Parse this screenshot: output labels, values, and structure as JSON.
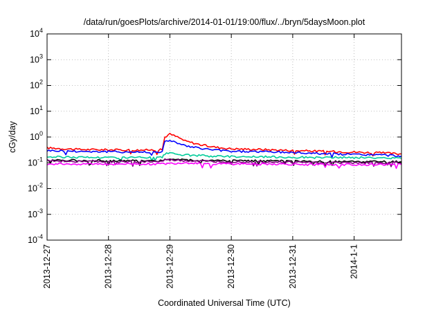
{
  "chart_data": {
    "type": "line",
    "title": "/data/run/goesPlots/archive/2014-01-01/19:00/flux/../bryn/5daysMoon.plot",
    "xlabel": "Coordinated Universal Time (UTC)",
    "ylabel": "cGy/day",
    "y_scale": "log",
    "ylim": [
      0.0001,
      10000
    ],
    "xlim": [
      "2013-12-27",
      "2014-01-01T18:30"
    ],
    "x_ticks": [
      "2013-12-27",
      "2013-12-28",
      "2013-12-29",
      "2013-12-30",
      "2013-12-31",
      "2014-1-1"
    ],
    "y_ticks": [
      {
        "base": "10",
        "exp": "-4",
        "value": 0.0001
      },
      {
        "base": "10",
        "exp": "-3",
        "value": 0.001
      },
      {
        "base": "10",
        "exp": "-2",
        "value": 0.01
      },
      {
        "base": "10",
        "exp": "-1",
        "value": 0.1
      },
      {
        "base": "10",
        "exp": "0",
        "value": 1
      },
      {
        "base": "10",
        "exp": "1",
        "value": 10
      },
      {
        "base": "10",
        "exp": "2",
        "value": 100
      },
      {
        "base": "10",
        "exp": "3",
        "value": 1000
      },
      {
        "base": "10",
        "exp": "4",
        "value": 10000
      }
    ],
    "grid": true,
    "legend": "none",
    "series": [
      {
        "color": "#ff0000",
        "x": [
          "2013-12-27T00:00",
          "2013-12-27T12:00",
          "2013-12-28T00:00",
          "2013-12-28T12:00",
          "2013-12-28T21:00",
          "2013-12-28T22:00",
          "2013-12-29T00:00",
          "2013-12-29T03:00",
          "2013-12-29T06:00",
          "2013-12-29T12:00",
          "2013-12-29T18:00",
          "2013-12-30T00:00",
          "2013-12-30T12:00",
          "2013-12-31T00:00",
          "2013-12-31T12:00",
          "2014-01-01T00:00",
          "2014-01-01T12:00",
          "2014-01-01T18:30"
        ],
        "values": [
          0.38,
          0.33,
          0.32,
          0.31,
          0.32,
          1.0,
          1.3,
          1.0,
          0.7,
          0.5,
          0.4,
          0.35,
          0.33,
          0.3,
          0.28,
          0.26,
          0.24,
          0.22
        ]
      },
      {
        "color": "#0000ff",
        "x": [
          "2013-12-27T00:00",
          "2013-12-27T12:00",
          "2013-12-28T00:00",
          "2013-12-28T12:00",
          "2013-12-28T21:00",
          "2013-12-28T22:00",
          "2013-12-29T00:00",
          "2013-12-29T03:00",
          "2013-12-29T06:00",
          "2013-12-29T12:00",
          "2013-12-29T18:00",
          "2013-12-30T00:00",
          "2013-12-30T12:00",
          "2013-12-31T00:00",
          "2013-12-31T12:00",
          "2014-01-01T00:00",
          "2014-01-01T12:00",
          "2014-01-01T18:30"
        ],
        "values": [
          0.3,
          0.28,
          0.27,
          0.26,
          0.27,
          0.65,
          0.75,
          0.6,
          0.45,
          0.36,
          0.31,
          0.28,
          0.27,
          0.25,
          0.23,
          0.21,
          0.2,
          0.18
        ]
      },
      {
        "color": "#00cc99",
        "x": [
          "2013-12-27T00:00",
          "2013-12-28T00:00",
          "2013-12-28T21:00",
          "2013-12-28T22:00",
          "2013-12-29T00:00",
          "2013-12-29T06:00",
          "2013-12-29T18:00",
          "2013-12-30T12:00",
          "2013-12-31T12:00",
          "2014-01-01T00:00",
          "2014-01-01T18:30"
        ],
        "values": [
          0.17,
          0.16,
          0.16,
          0.22,
          0.23,
          0.2,
          0.18,
          0.17,
          0.16,
          0.16,
          0.15
        ]
      },
      {
        "color": "#000000",
        "x": [
          "2013-12-27T00:00",
          "2013-12-28T00:00",
          "2013-12-28T21:00",
          "2013-12-28T22:00",
          "2013-12-29T06:00",
          "2013-12-29T18:00",
          "2013-12-30T12:00",
          "2013-12-31T12:00",
          "2014-01-01T18:30"
        ],
        "values": [
          0.13,
          0.12,
          0.12,
          0.14,
          0.13,
          0.12,
          0.12,
          0.11,
          0.11
        ]
      },
      {
        "color": "#800080",
        "x": [
          "2013-12-27T00:00",
          "2013-12-28T00:00",
          "2013-12-28T21:00",
          "2013-12-28T22:00",
          "2013-12-29T06:00",
          "2013-12-29T18:00",
          "2013-12-30T12:00",
          "2013-12-31T12:00",
          "2014-01-01T18:30"
        ],
        "values": [
          0.12,
          0.11,
          0.11,
          0.13,
          0.12,
          0.11,
          0.11,
          0.1,
          0.1
        ]
      },
      {
        "color": "#ff00ff",
        "x": [
          "2013-12-27T00:00",
          "2013-12-28T00:00",
          "2013-12-28T21:00",
          "2013-12-29T06:00",
          "2013-12-29T18:00",
          "2013-12-30T12:00",
          "2013-12-31T12:00",
          "2014-01-01T18:30"
        ],
        "values": [
          0.09,
          0.09,
          0.09,
          0.1,
          0.09,
          0.09,
          0.085,
          0.085
        ]
      }
    ]
  }
}
